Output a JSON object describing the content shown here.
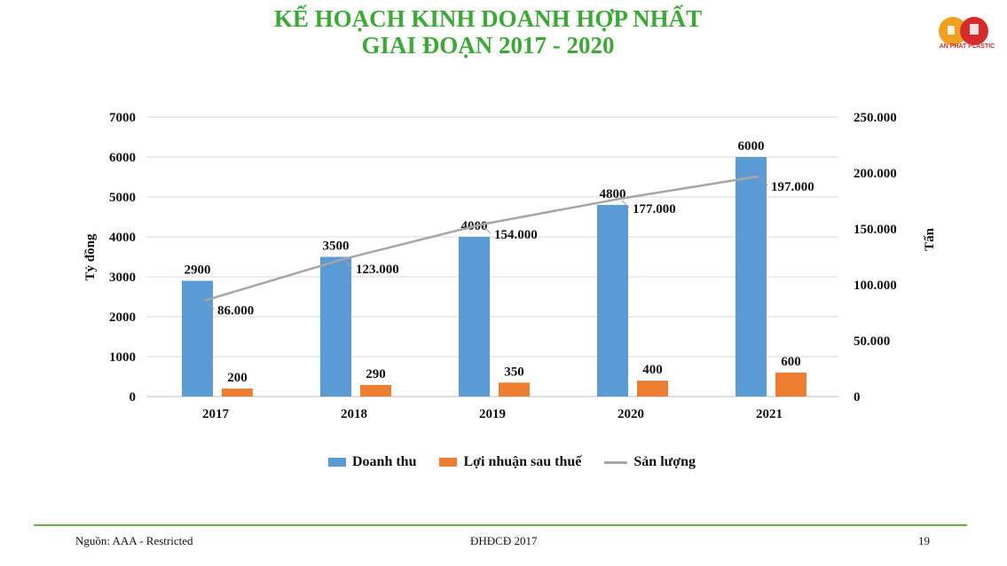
{
  "title": {
    "line1": "KẾ HOẠCH KINH DOANH HỢP NHẤT",
    "line2": "GIAI ĐOẠN 2017 - 2020"
  },
  "logo": {
    "text": "AN PHAT PLASTIC"
  },
  "colors": {
    "title": "#3aaa35",
    "revenue": "#5b9bd5",
    "profit": "#ed7d31",
    "volume": "#a6a6a6",
    "footer_line": "#6aaf45"
  },
  "chart_data": {
    "type": "bar",
    "categories": [
      "2017",
      "2018",
      "2019",
      "2020",
      "2021"
    ],
    "series": [
      {
        "name": "Doanh thu",
        "kind": "bar",
        "axis": "left",
        "values": [
          2900,
          3500,
          4000,
          4800,
          6000
        ],
        "labels": [
          "2900",
          "3500",
          "4000",
          "4800",
          "6000"
        ]
      },
      {
        "name": "Lợi nhuận sau thuế",
        "kind": "bar",
        "axis": "left",
        "values": [
          200,
          290,
          350,
          400,
          600
        ],
        "labels": [
          "200",
          "290",
          "350",
          "400",
          "600"
        ]
      },
      {
        "name": "Sản lượng",
        "kind": "line",
        "axis": "right",
        "values": [
          86000,
          123000,
          154000,
          177000,
          197000
        ],
        "labels": [
          "86.000",
          "123.000",
          "154.000",
          "177.000",
          "197.000"
        ]
      }
    ],
    "ylabel": "Tỷ đồng",
    "y2label": "Tấn",
    "ylim": [
      0,
      7000
    ],
    "y2lim": [
      0,
      250000
    ],
    "yticks": [
      "0",
      "1000",
      "2000",
      "3000",
      "4000",
      "5000",
      "6000",
      "7000"
    ],
    "y2ticks": [
      "0",
      "50.000",
      "100.000",
      "150.000",
      "200.000",
      "250.000"
    ],
    "grid": true,
    "legend": "bottom"
  },
  "footer": {
    "source": "Nguồn: AAA - Restricted",
    "center": "ĐHĐCĐ 2017",
    "page": "19"
  }
}
